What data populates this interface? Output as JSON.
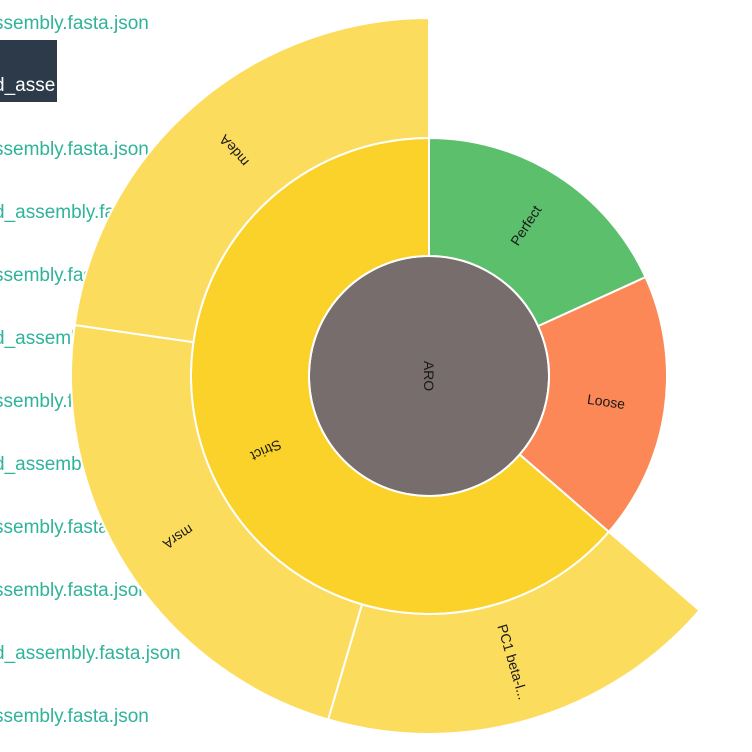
{
  "file_list": {
    "items": [
      "ssembly.fasta.json",
      "d_asse",
      "ssembly.fasta.json",
      "d_assembly.fasta.json",
      "ssembly.fasta.json",
      "d_assembly.fasta.json",
      "ssembly.fasta.json",
      "d_assembly.fasta.json",
      "ssembly.fasta.json",
      "ssembly.fasta.json",
      "d_assembly.fasta.json",
      "ssembly.fasta.json"
    ],
    "selected_index": 1
  },
  "chart_data": {
    "type": "sunburst",
    "root": {
      "name": "ARO",
      "color": "#776d6c",
      "children": [
        {
          "name": "Perfect",
          "color": "#5bbf6b",
          "value": 1,
          "children": []
        },
        {
          "name": "Loose",
          "color": "#fb8856",
          "value": 1,
          "children": []
        },
        {
          "name": "Strict",
          "color": "#fbd22a",
          "value": 3.5,
          "children": [
            {
              "name": "PC1 beta-l...",
              "color": "#fcdc5c",
              "value": 1
            },
            {
              "name": "msrA",
              "color": "#fcdc5c",
              "value": 1.25
            },
            {
              "name": "mdeA",
              "color": "#fcdc5c",
              "value": 1.25
            }
          ]
        }
      ]
    }
  }
}
